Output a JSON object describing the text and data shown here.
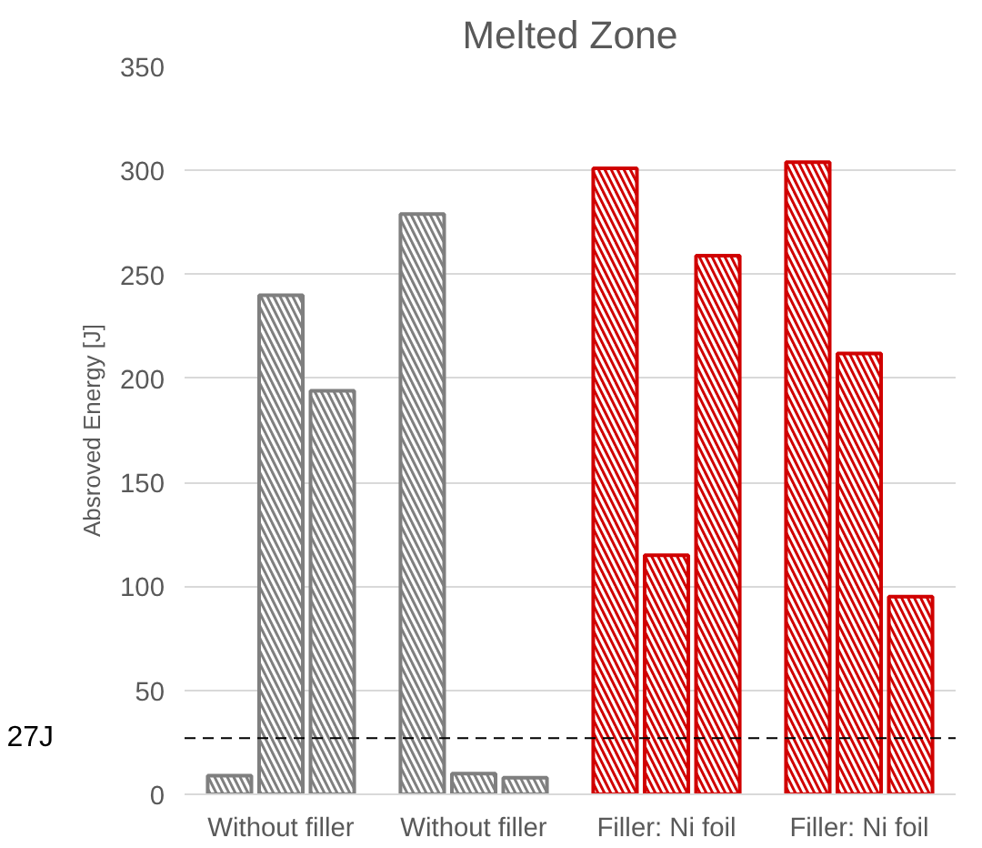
{
  "chart_data": {
    "type": "bar",
    "title": "Melted Zone",
    "ylabel": "Absroved Energy [J]",
    "categories": [
      "Without filler",
      "Without filler",
      "Filler: Ni foil",
      "Filler: Ni foil"
    ],
    "series": [
      {
        "colors": [
          "#7f7f7f",
          "#7f7f7f",
          "#d00000",
          "#d00000"
        ],
        "values": [
          9,
          279,
          301,
          304
        ]
      },
      {
        "colors": [
          "#7f7f7f",
          "#7f7f7f",
          "#d00000",
          "#d00000"
        ],
        "values": [
          240,
          10,
          115,
          212
        ]
      },
      {
        "colors": [
          "#7f7f7f",
          "#7f7f7f",
          "#d00000",
          "#d00000"
        ],
        "values": [
          194,
          8,
          259,
          95
        ]
      }
    ],
    "ylim": [
      0,
      350
    ],
    "yticks": [
      0,
      50,
      100,
      150,
      200,
      250,
      300,
      350
    ],
    "grid": "y",
    "ref_lines": [
      {
        "axis": "y",
        "value": 27,
        "label": "27J",
        "color": "#000000",
        "line_style": "dashed"
      }
    ]
  }
}
